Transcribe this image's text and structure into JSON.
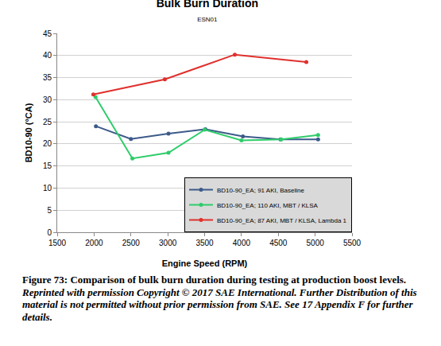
{
  "chart_data": {
    "type": "line",
    "title": "Bulk Burn Duration",
    "subtitle": "ESN01",
    "x_label": "Engine Speed (RPM)",
    "y_label": "BD10-90 (°CA)",
    "xlim": [
      1500,
      5500
    ],
    "xticks": [
      1500,
      2000,
      2500,
      3000,
      3500,
      4000,
      4500,
      5000,
      5500
    ],
    "ylim": [
      0,
      45
    ],
    "yticks": [
      0,
      5,
      10,
      15,
      20,
      25,
      30,
      35,
      40,
      45
    ],
    "grid": true,
    "legend": "lower right",
    "marker": "circle",
    "series": [
      {
        "name": "BD10-90_EA; 91 AKI, Baseline",
        "color": "#3c5a8a",
        "x": [
          2025,
          2500,
          3010,
          3510,
          4020,
          4530,
          5040
        ],
        "values": [
          24.0,
          21.1,
          22.3,
          23.3,
          21.7,
          21.0,
          21.0
        ]
      },
      {
        "name": "BD10-90_EA; 110 AKI, MBT / KLSA",
        "color": "#2ecc6a",
        "x": [
          2020,
          2520,
          3010,
          3500,
          4000,
          4540,
          5040
        ],
        "values": [
          30.6,
          16.7,
          18.0,
          23.2,
          20.8,
          21.0,
          22.0
        ]
      },
      {
        "name": "BD10-90_EA; 87 AKI, MBT / KLSA, Lambda 1",
        "color": "#e0302c",
        "x": [
          1990,
          2960,
          3910,
          4880
        ],
        "values": [
          31.2,
          34.6,
          40.2,
          38.5
        ]
      }
    ],
    "caption": "Figure 73: Comparison of bulk burn duration during testing at production boost levels.",
    "caption_note": "Reprinted with permission Copyright © 2017 SAE International. Further Distribution of this material is not permitted without prior permission from SAE. See 17 Appendix F for further details."
  }
}
